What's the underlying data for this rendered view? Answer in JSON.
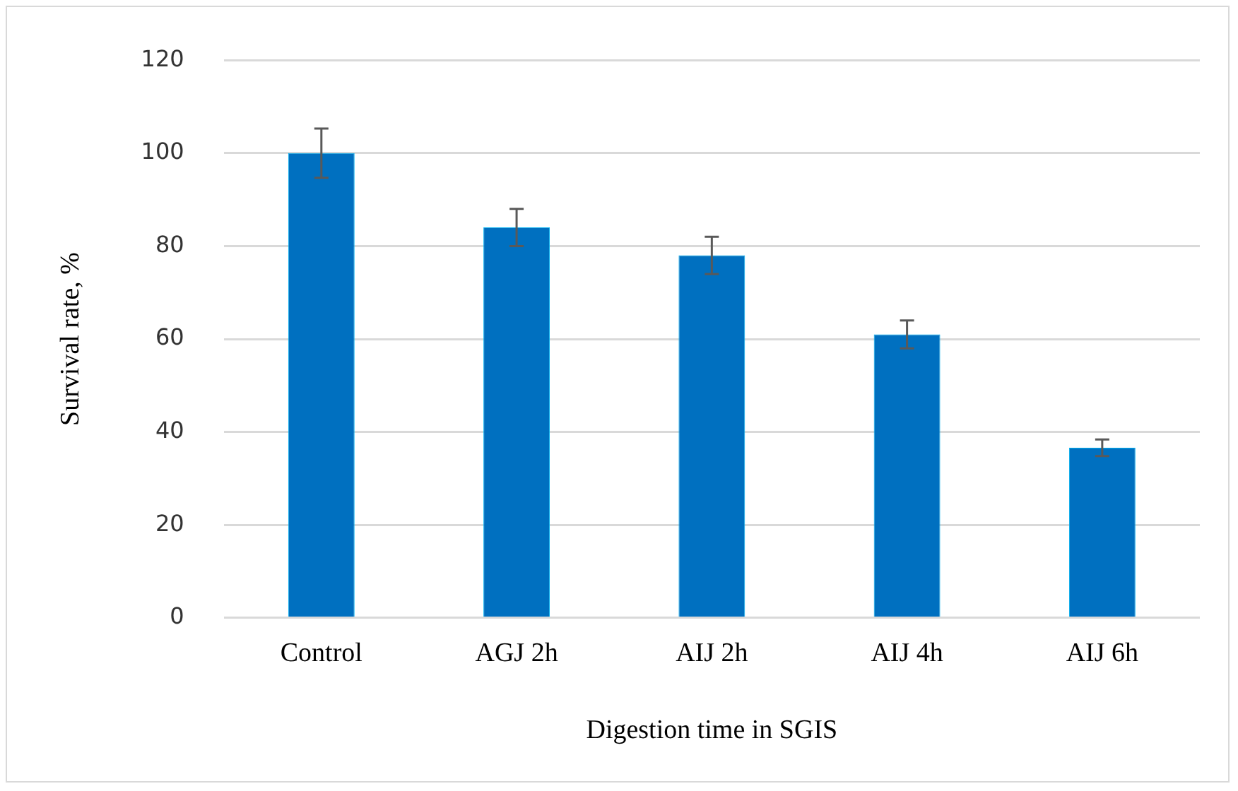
{
  "chart_data": {
    "type": "bar",
    "xlabel": "Digestion time in SGIS",
    "ylabel": "Survival rate, %",
    "categories": [
      "Control",
      "AGJ 2h",
      "AIJ 2h",
      "AIJ 4h",
      "AIJ 6h"
    ],
    "values": [
      100,
      84,
      78,
      61,
      36.6
    ],
    "color": "#0070c0",
    "errors": [
      5.3,
      4,
      4,
      3,
      1.8
    ],
    "ylim": [
      0,
      120
    ],
    "yticks": [
      0,
      20,
      40,
      60,
      80,
      100,
      120
    ],
    "grid": "y",
    "legend": false
  }
}
